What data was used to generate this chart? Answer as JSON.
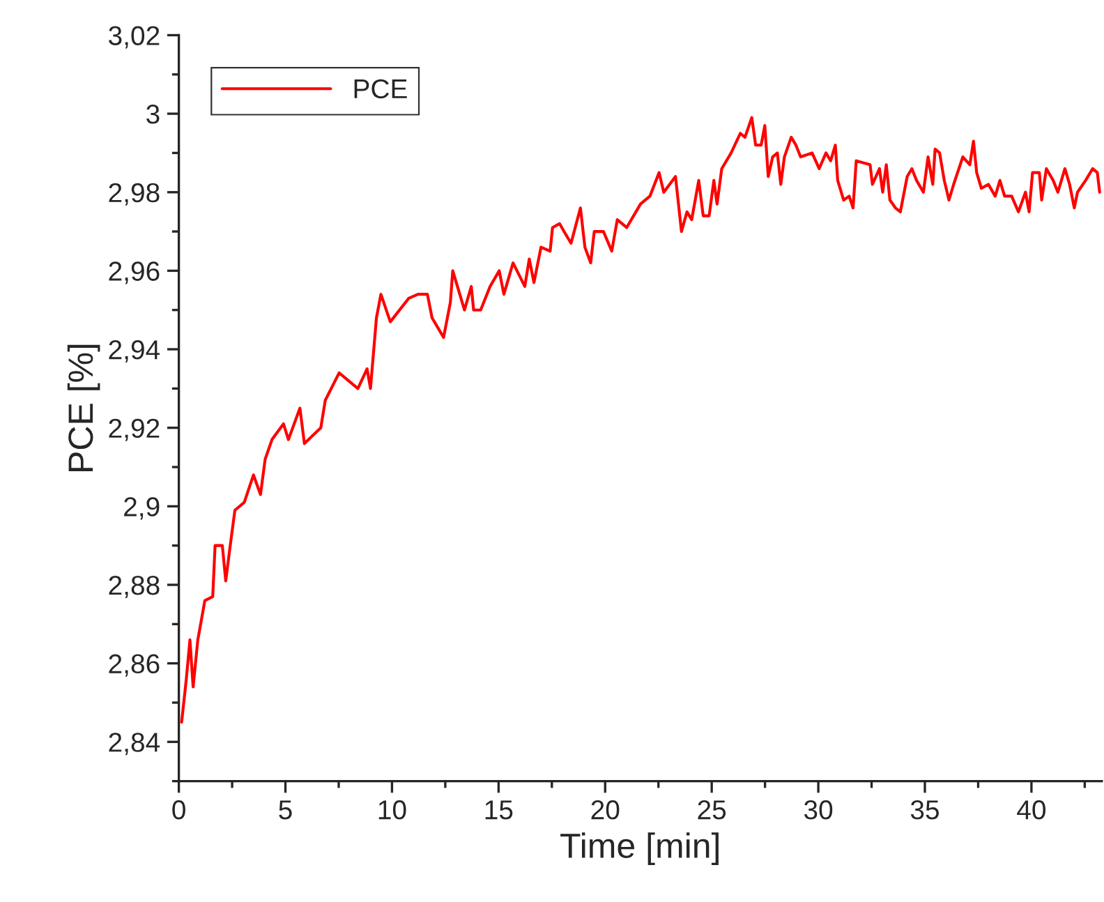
{
  "chart_data": {
    "type": "line",
    "xlabel": "Time [min]",
    "ylabel": "PCE [%]",
    "xlim": [
      0,
      43.3
    ],
    "ylim": [
      2.83,
      3.02
    ],
    "xticks": [
      0,
      5,
      10,
      15,
      20,
      25,
      30,
      35,
      40
    ],
    "yticks": [
      {
        "value": 2.84,
        "label": "2,84"
      },
      {
        "value": 2.86,
        "label": "2,86"
      },
      {
        "value": 2.88,
        "label": "2,88"
      },
      {
        "value": 2.9,
        "label": "2,9"
      },
      {
        "value": 2.92,
        "label": "2,92"
      },
      {
        "value": 2.94,
        "label": "2,94"
      },
      {
        "value": 2.96,
        "label": "2,96"
      },
      {
        "value": 2.98,
        "label": "2,98"
      },
      {
        "value": 3.0,
        "label": "3"
      },
      {
        "value": 3.02,
        "label": "3,02"
      }
    ],
    "grid": false,
    "legend": "top left",
    "marker": "none",
    "line_style": "solid",
    "series": [
      {
        "name": "PCE",
        "color": "#ff0000",
        "x": [
          0.13,
          0.35,
          0.52,
          0.67,
          0.89,
          1.22,
          1.59,
          1.7,
          2.04,
          2.2,
          2.41,
          2.63,
          3.07,
          3.5,
          3.83,
          4.05,
          4.37,
          4.91,
          5.14,
          5.68,
          5.89,
          6.66,
          6.87,
          7.52,
          8.4,
          8.83,
          8.99,
          9.27,
          9.48,
          9.92,
          10.79,
          11.22,
          11.66,
          11.88,
          12.42,
          12.74,
          12.85,
          13.07,
          13.4,
          13.72,
          13.83,
          14.16,
          14.6,
          15.03,
          15.25,
          15.68,
          16.23,
          16.44,
          16.66,
          16.99,
          17.42,
          17.53,
          17.86,
          18.07,
          18.4,
          18.84,
          19.05,
          19.32,
          19.49,
          19.92,
          20.31,
          20.57,
          21.01,
          21.66,
          22.1,
          22.53,
          22.75,
          23.3,
          23.58,
          23.84,
          24.06,
          24.39,
          24.6,
          24.88,
          25.1,
          25.25,
          25.47,
          25.91,
          26.34,
          26.56,
          26.88,
          27.06,
          27.32,
          27.49,
          27.65,
          27.86,
          28.08,
          28.24,
          28.41,
          28.73,
          28.95,
          29.17,
          29.71,
          30.04,
          30.36,
          30.58,
          30.8,
          30.91,
          31.19,
          31.45,
          31.63,
          31.78,
          32.43,
          32.54,
          32.87,
          33.02,
          33.19,
          33.36,
          33.62,
          33.85,
          34.17,
          34.39,
          34.61,
          34.93,
          35.15,
          35.37,
          35.48,
          35.69,
          35.91,
          36.13,
          36.35,
          36.78,
          37.11,
          37.28,
          37.43,
          37.65,
          37.98,
          38.3,
          38.52,
          38.74,
          39.07,
          39.39,
          39.72,
          39.89,
          40.05,
          40.37,
          40.48,
          40.7,
          41.02,
          41.24,
          41.57,
          41.79,
          42.01,
          42.16,
          42.54,
          42.87,
          43.09,
          43.2
        ],
        "values": [
          2.845,
          2.856,
          2.866,
          2.854,
          2.866,
          2.876,
          2.877,
          2.89,
          2.89,
          2.881,
          2.89,
          2.899,
          2.901,
          2.908,
          2.903,
          2.912,
          2.917,
          2.921,
          2.917,
          2.925,
          2.916,
          2.92,
          2.927,
          2.934,
          2.93,
          2.935,
          2.93,
          2.948,
          2.954,
          2.947,
          2.953,
          2.954,
          2.954,
          2.948,
          2.943,
          2.952,
          2.96,
          2.956,
          2.95,
          2.956,
          2.95,
          2.95,
          2.956,
          2.96,
          2.954,
          2.962,
          2.956,
          2.963,
          2.957,
          2.966,
          2.965,
          2.971,
          2.972,
          2.97,
          2.967,
          2.976,
          2.966,
          2.962,
          2.97,
          2.97,
          2.965,
          2.973,
          2.971,
          2.977,
          2.979,
          2.985,
          2.98,
          2.984,
          2.97,
          2.975,
          2.973,
          2.983,
          2.974,
          2.974,
          2.983,
          2.977,
          2.986,
          2.99,
          2.995,
          2.994,
          2.999,
          2.992,
          2.992,
          2.997,
          2.984,
          2.989,
          2.99,
          2.982,
          2.989,
          2.994,
          2.992,
          2.989,
          2.99,
          2.986,
          2.99,
          2.988,
          2.992,
          2.983,
          2.978,
          2.979,
          2.976,
          2.988,
          2.987,
          2.982,
          2.986,
          2.98,
          2.987,
          2.978,
          2.976,
          2.975,
          2.984,
          2.986,
          2.983,
          2.98,
          2.989,
          2.982,
          2.991,
          2.99,
          2.983,
          2.978,
          2.982,
          2.989,
          2.987,
          2.993,
          2.985,
          2.981,
          2.982,
          2.979,
          2.983,
          2.979,
          2.979,
          2.975,
          2.98,
          2.975,
          2.985,
          2.985,
          2.978,
          2.986,
          2.983,
          2.98,
          2.986,
          2.982,
          2.976,
          2.98,
          2.983,
          2.986,
          2.985,
          2.98
        ]
      }
    ]
  }
}
